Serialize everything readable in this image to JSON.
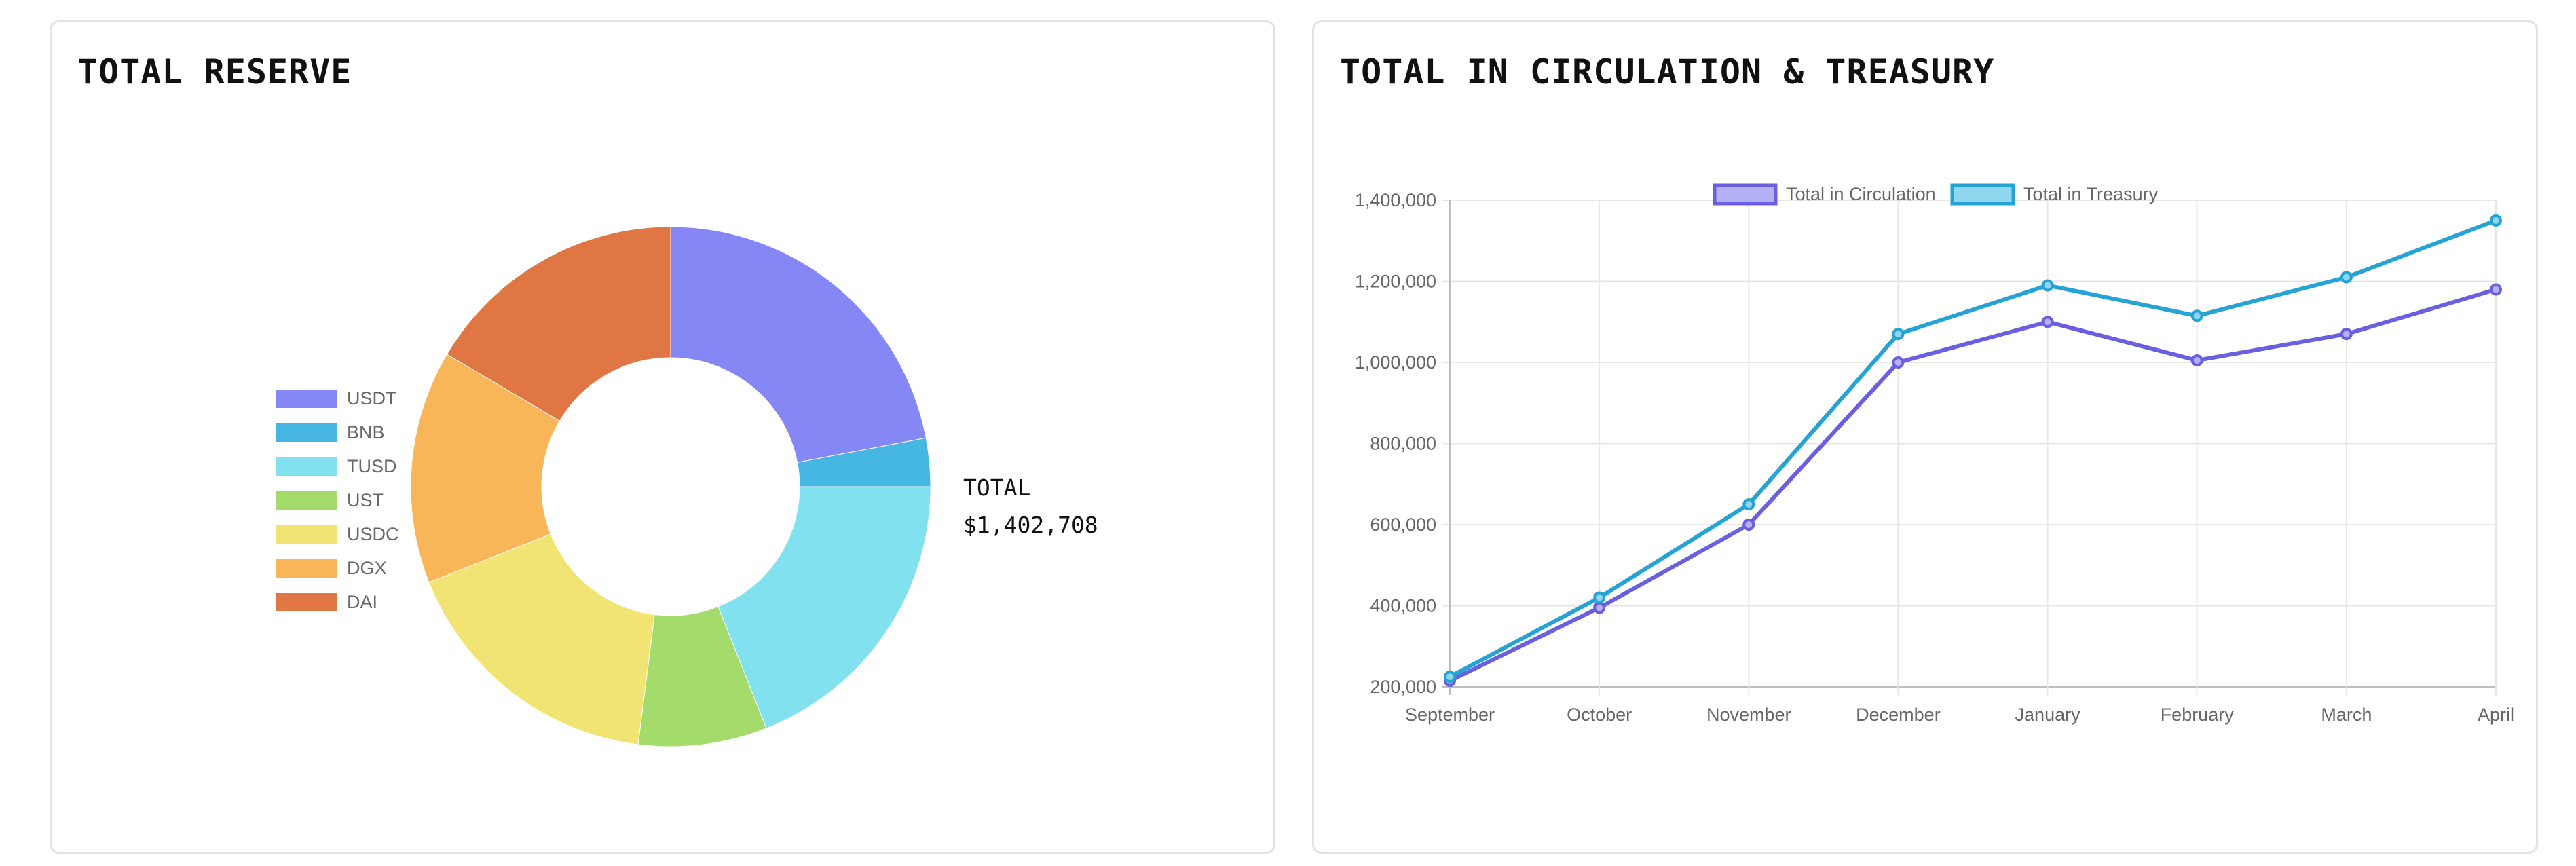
{
  "panels": {
    "reserve": {
      "title": "TOTAL RESERVE"
    },
    "circulation": {
      "title": "TOTAL IN CIRCULATION & TREASURY"
    }
  },
  "chart_data": [
    {
      "type": "doughnut",
      "title": "TOTAL RESERVE",
      "center_label": "TOTAL",
      "total": "$1,402,708",
      "legend_position": "left",
      "categories": [
        "USDT",
        "BNB",
        "TUSD",
        "UST",
        "USDC",
        "DGX",
        "DAI"
      ],
      "values": [
        22.0,
        3.0,
        19.0,
        8.0,
        17.0,
        14.5,
        16.5
      ],
      "value_unit": "percent of total",
      "colors": [
        "#8487f4",
        "#46b6e2",
        "#82e1ee",
        "#a4dc6c",
        "#f1e472",
        "#f8b659",
        "#e07644"
      ]
    },
    {
      "type": "line",
      "title": "TOTAL IN CIRCULATION & TREASURY",
      "legend_position": "top",
      "x": [
        "September",
        "October",
        "November",
        "December",
        "January",
        "February",
        "March",
        "April"
      ],
      "ylim": [
        200000,
        1400000
      ],
      "yticks": [
        "1,400,000",
        "1,200,000",
        "1,000,000",
        "800,000",
        "600,000",
        "400,000",
        "200,000"
      ],
      "grid": true,
      "series": [
        {
          "name": "Total in Circulation",
          "color": "#6a5fe0",
          "fill": "#b3b0f6",
          "values": [
            215000,
            395000,
            600000,
            1000000,
            1100000,
            1005000,
            1070000,
            1180000
          ]
        },
        {
          "name": "Total in Treasury",
          "color": "#24a3d4",
          "fill": "#8fd7ef",
          "values": [
            225000,
            420000,
            650000,
            1070000,
            1190000,
            1115000,
            1210000,
            1350000
          ]
        }
      ]
    }
  ]
}
